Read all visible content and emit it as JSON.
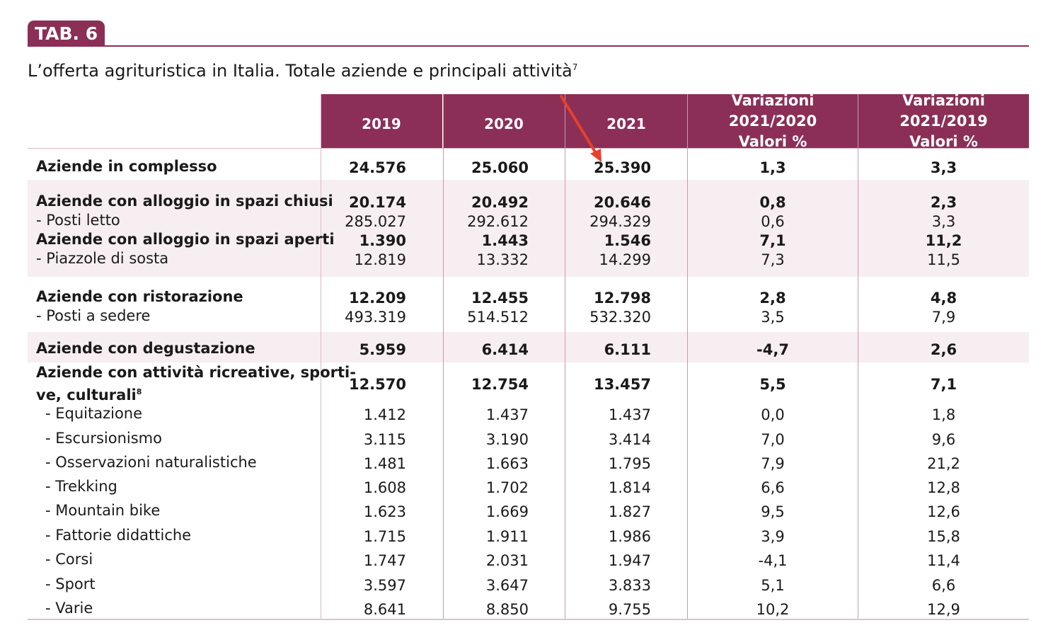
{
  "badge": "TAB. 6",
  "title": "L’offerta agrituristica in Italia. Totale aziende e principali attività",
  "title_note": "7",
  "headers": {
    "y2019": "2019",
    "y2020": "2020",
    "y2021": "2021",
    "var2020_line1": "Variazioni 2021/2020",
    "var2020_line2": "Valori %",
    "var2019_line1": "Variazioni 2021/2019",
    "var2019_line2": "Valori %"
  },
  "rows": [
    {
      "label": "Aziende in complesso",
      "y2019": "24.576",
      "y2020": "25.060",
      "y2021": "25.390",
      "var2020": "1,3",
      "var2019": "3,3"
    },
    {
      "label": "Aziende con alloggio in spazi chiusi",
      "y2019": "20.174",
      "y2020": "20.492",
      "y2021": "20.646",
      "var2020": "0,8",
      "var2019": "2,3"
    },
    {
      "label": "- Posti letto",
      "y2019": "285.027",
      "y2020": "292.612",
      "y2021": "294.329",
      "var2020": "0,6",
      "var2019": "3,3"
    },
    {
      "label": "Aziende con alloggio in spazi aperti",
      "y2019": "1.390",
      "y2020": "1.443",
      "y2021": "1.546",
      "var2020": "7,1",
      "var2019": "11,2"
    },
    {
      "label": "- Piazzole di sosta",
      "y2019": "12.819",
      "y2020": "13.332",
      "y2021": "14.299",
      "var2020": "7,3",
      "var2019": "11,5"
    },
    {
      "label": "Aziende con ristorazione",
      "y2019": "12.209",
      "y2020": "12.455",
      "y2021": "12.798",
      "var2020": "2,8",
      "var2019": "4,8"
    },
    {
      "label": "- Posti a sedere",
      "y2019": "493.319",
      "y2020": "514.512",
      "y2021": "532.320",
      "var2020": "3,5",
      "var2019": "7,9"
    },
    {
      "label": "Aziende con degustazione",
      "y2019": "5.959",
      "y2020": "6.414",
      "y2021": "6.111",
      "var2020": "-4,7",
      "var2019": "2,6"
    },
    {
      "label_line1": "Aziende con attività ricreative, sporti-",
      "label_line2": "ve, culturali",
      "label_note": "8",
      "y2019": "12.570",
      "y2020": "12.754",
      "y2021": "13.457",
      "var2020": "5,5",
      "var2019": "7,1"
    },
    {
      "label": "- Equitazione",
      "y2019": "1.412",
      "y2020": "1.437",
      "y2021": "1.437",
      "var2020": "0,0",
      "var2019": "1,8"
    },
    {
      "label": "- Escursionismo",
      "y2019": "3.115",
      "y2020": "3.190",
      "y2021": "3.414",
      "var2020": "7,0",
      "var2019": "9,6"
    },
    {
      "label": "- Osservazioni naturalistiche",
      "y2019": "1.481",
      "y2020": "1.663",
      "y2021": "1.795",
      "var2020": "7,9",
      "var2019": "21,2"
    },
    {
      "label": "- Trekking",
      "y2019": "1.608",
      "y2020": "1.702",
      "y2021": "1.814",
      "var2020": "6,6",
      "var2019": "12,8"
    },
    {
      "label": "- Mountain bike",
      "y2019": "1.623",
      "y2020": "1.669",
      "y2021": "1.827",
      "var2020": "9,5",
      "var2019": "12,6"
    },
    {
      "label": "- Fattorie didattiche",
      "y2019": "1.715",
      "y2020": "1.911",
      "y2021": "1.986",
      "var2020": "3,9",
      "var2019": "15,8"
    },
    {
      "label": "- Corsi",
      "y2019": "1.747",
      "y2020": "2.031",
      "y2021": "1.947",
      "var2020": "-4,1",
      "var2019": "11,4"
    },
    {
      "label": "- Sport",
      "y2019": "3.597",
      "y2020": "3.647",
      "y2021": "3.833",
      "var2020": "5,1",
      "var2019": "6,6"
    },
    {
      "label": "- Varie",
      "y2019": "8.641",
      "y2020": "8.850",
      "y2021": "9.755",
      "var2020": "10,2",
      "var2019": "12,9"
    }
  ],
  "colors": {
    "accent": "#8b2f57",
    "band": "#f7eef2",
    "annotation_arrow": "#e8402a"
  }
}
